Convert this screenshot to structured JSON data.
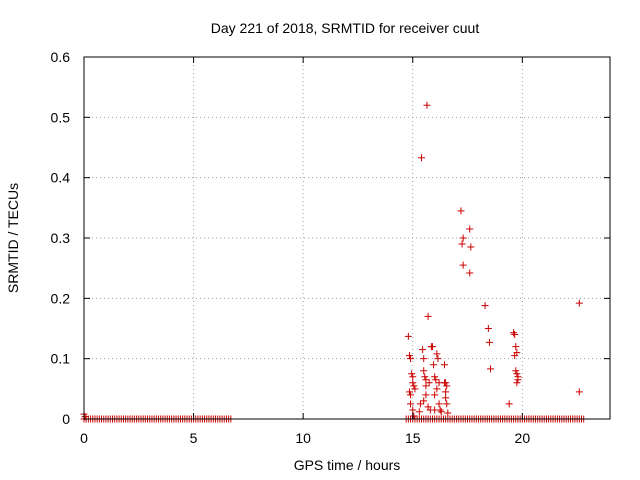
{
  "chart_data": {
    "type": "scatter",
    "title": "Day 221 of 2018, SRMTID for receiver cuut",
    "xlabel": "GPS time / hours",
    "ylabel": "SRMTID / TECUs",
    "xlim": [
      0,
      24
    ],
    "ylim": [
      0,
      0.6
    ],
    "xticks": [
      0,
      5,
      10,
      15,
      20
    ],
    "xtick_labels": [
      "0",
      "5",
      "10",
      "15",
      "20"
    ],
    "yticks": [
      0,
      0.1,
      0.2,
      0.3,
      0.4,
      0.5,
      0.6
    ],
    "ytick_labels": [
      "0",
      "0.1",
      "0.2",
      "0.3",
      "0.4",
      "0.5",
      "0.6"
    ],
    "grid": true,
    "marker": "+",
    "color": "#cc0000",
    "series": [
      {
        "name": "SRMTID",
        "baseline_ranges": [
          [
            0.0,
            6.7
          ],
          [
            14.7,
            22.8
          ]
        ],
        "baseline_step": 0.1,
        "points": [
          [
            0.0,
            0.008
          ],
          [
            0.05,
            0.004
          ],
          [
            14.8,
            0.137
          ],
          [
            14.85,
            0.105
          ],
          [
            14.9,
            0.1
          ],
          [
            14.85,
            0.045
          ],
          [
            14.9,
            0.04
          ],
          [
            14.95,
            0.075
          ],
          [
            15.0,
            0.07
          ],
          [
            15.0,
            0.06
          ],
          [
            15.05,
            0.055
          ],
          [
            14.9,
            0.025
          ],
          [
            15.0,
            0.015
          ],
          [
            15.05,
            0.005
          ],
          [
            15.1,
            0.05
          ],
          [
            15.3,
            0.012
          ],
          [
            15.35,
            0.025
          ],
          [
            15.4,
            0.433
          ],
          [
            15.45,
            0.115
          ],
          [
            15.5,
            0.1
          ],
          [
            15.5,
            0.08
          ],
          [
            15.55,
            0.07
          ],
          [
            15.6,
            0.065
          ],
          [
            15.6,
            0.055
          ],
          [
            15.65,
            0.52
          ],
          [
            15.7,
            0.17
          ],
          [
            15.75,
            0.06
          ],
          [
            15.5,
            0.03
          ],
          [
            15.6,
            0.04
          ],
          [
            15.7,
            0.02
          ],
          [
            15.8,
            0.015
          ],
          [
            15.85,
            0.12
          ],
          [
            15.9,
            0.12
          ],
          [
            15.95,
            0.09
          ],
          [
            16.0,
            0.07
          ],
          [
            16.05,
            0.065
          ],
          [
            16.1,
            0.108
          ],
          [
            16.15,
            0.1
          ],
          [
            16.2,
            0.06
          ],
          [
            16.0,
            0.04
          ],
          [
            16.1,
            0.05
          ],
          [
            16.2,
            0.025
          ],
          [
            16.25,
            0.015
          ],
          [
            16.0,
            0.015
          ],
          [
            16.3,
            0.012
          ],
          [
            16.45,
            0.09
          ],
          [
            16.5,
            0.06
          ],
          [
            16.55,
            0.055
          ],
          [
            16.5,
            0.045
          ],
          [
            16.5,
            0.035
          ],
          [
            16.55,
            0.025
          ],
          [
            16.6,
            0.01
          ],
          [
            16.45,
            0.06
          ],
          [
            17.2,
            0.345
          ],
          [
            17.3,
            0.3
          ],
          [
            17.25,
            0.29
          ],
          [
            17.3,
            0.255
          ],
          [
            17.6,
            0.315
          ],
          [
            17.65,
            0.285
          ],
          [
            17.6,
            0.242
          ],
          [
            18.3,
            0.188
          ],
          [
            18.45,
            0.15
          ],
          [
            18.5,
            0.127
          ],
          [
            18.55,
            0.083
          ],
          [
            19.4,
            0.025
          ],
          [
            19.6,
            0.143
          ],
          [
            19.65,
            0.14
          ],
          [
            19.7,
            0.12
          ],
          [
            19.75,
            0.11
          ],
          [
            19.65,
            0.105
          ],
          [
            19.7,
            0.08
          ],
          [
            19.75,
            0.075
          ],
          [
            19.8,
            0.07
          ],
          [
            19.75,
            0.06
          ],
          [
            19.8,
            0.065
          ],
          [
            22.6,
            0.192
          ],
          [
            22.6,
            0.045
          ]
        ]
      }
    ]
  }
}
